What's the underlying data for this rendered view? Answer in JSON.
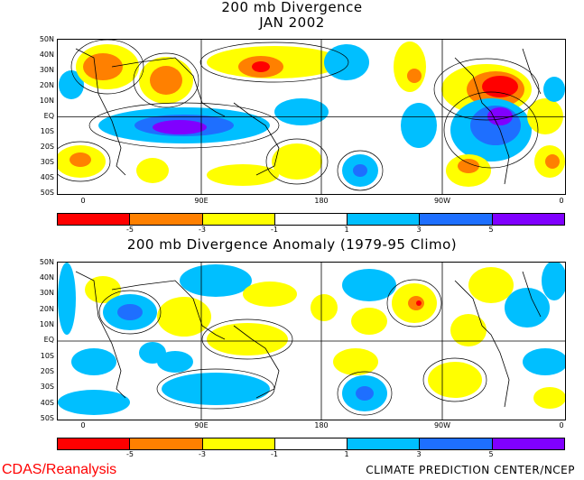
{
  "top_panel": {
    "title_line1": "200 mb Divergence",
    "title_line2": "JAN 2002"
  },
  "bottom_panel": {
    "title": "200 mb Divergence Anomaly (1979-95 Climo)"
  },
  "lat_labels": [
    "50N",
    "40N",
    "30N",
    "20N",
    "10N",
    "EQ",
    "10S",
    "20S",
    "30S",
    "40S",
    "50S"
  ],
  "lon_labels": [
    "0",
    "90E",
    "180",
    "90W",
    "0"
  ],
  "colorbar": {
    "colors": [
      "#ff0000",
      "#ff8000",
      "#ffff00",
      "#ffffff",
      "#00bfff",
      "#1e6fff",
      "#8000ff"
    ],
    "labels": [
      "-5",
      "-3",
      "-1",
      "1",
      "3",
      "5"
    ]
  },
  "colors": {
    "pos1": "#00bfff",
    "pos2": "#1e6fff",
    "pos3": "#8000ff",
    "neg1": "#ffff00",
    "neg2": "#ff8000",
    "neg3": "#ff0000"
  },
  "footer": {
    "left": "CDAS/Reanalysis",
    "right": "CLIMATE PREDICTION CENTER/NCEP"
  }
}
